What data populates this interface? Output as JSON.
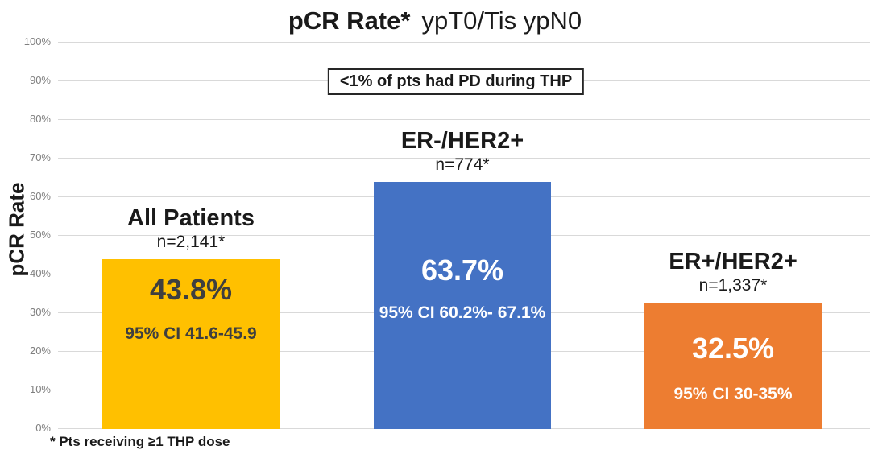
{
  "chart_data": {
    "type": "bar",
    "title": {
      "bold": "pCR Rate*",
      "rest": "ypT0/Tis ypN0"
    },
    "annotation": "<1% of pts had PD during THP",
    "ylabel": "pCR Rate",
    "ylim": [
      0,
      100
    ],
    "yticks": [
      0,
      10,
      20,
      30,
      40,
      50,
      60,
      70,
      80,
      90,
      100
    ],
    "ytick_suffix": "%",
    "grid": true,
    "legend": "none",
    "footnote": "* Pts receiving ≥1 THP dose",
    "categories": [
      "All Patients",
      "ER-/HER2+",
      "ER+/HER2+"
    ],
    "values": [
      43.8,
      63.7,
      32.5
    ],
    "bars": [
      {
        "category": "All Patients",
        "n_label": "n=2,141*",
        "value": 43.8,
        "value_label": "43.8%",
        "ci_label": "95% CI 41.6-45.9",
        "color": "#FFC000",
        "text_color": "#3F3F3F",
        "value_dy": 38,
        "ci_dy": 93
      },
      {
        "category": "ER-/HER2+",
        "n_label": "n=774*",
        "value": 63.7,
        "value_label": "63.7%",
        "ci_label": "95% CI 60.2%- 67.1%",
        "color": "#4472C4",
        "text_color": "#FFFFFF",
        "value_dy": 110,
        "ci_dy": 163
      },
      {
        "category": "ER+/HER2+",
        "n_label": "n=1,337*",
        "value": 32.5,
        "value_label": "32.5%",
        "ci_label": "95% CI 30-35%",
        "color": "#ED7D31",
        "text_color": "#FFFFFF",
        "value_dy": 57,
        "ci_dy": 114
      }
    ],
    "colors": {
      "gridline": "#D9D9D9",
      "tick_label": "#7F7F7F",
      "text": "#1A1A1A",
      "background": "#FFFFFF"
    }
  }
}
